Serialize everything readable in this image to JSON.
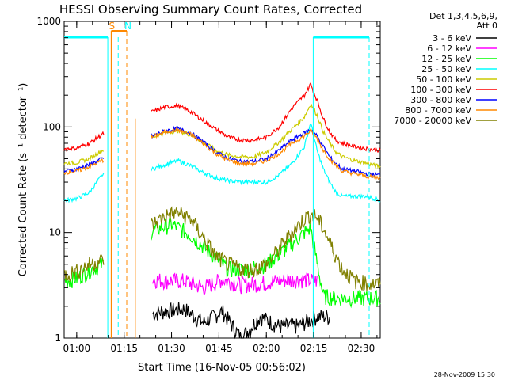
{
  "chart_data": {
    "type": "line",
    "title": "HESSI Observing Summary Count Rates, Corrected",
    "xlabel": "Start Time (16-Nov-05 00:56:02)",
    "ylabel": "Corrected Count Rate (s⁻¹ detector⁻¹)",
    "yscale": "log",
    "ylim": [
      1,
      1000
    ],
    "xlim_minutes_after_start": [
      0,
      100
    ],
    "x_ticks": [
      {
        "label": "01:00",
        "t": 3.97
      },
      {
        "label": "01:15",
        "t": 18.97
      },
      {
        "label": "01:30",
        "t": 33.97
      },
      {
        "label": "01:45",
        "t": 48.97
      },
      {
        "label": "02:00",
        "t": 63.97
      },
      {
        "label": "02:15",
        "t": 78.97
      },
      {
        "label": "02:30",
        "t": 93.97
      }
    ],
    "y_ticks": [
      {
        "label": "1",
        "v": 1
      },
      {
        "label": "10",
        "v": 10
      },
      {
        "label": "100",
        "v": 100
      },
      {
        "label": "1000",
        "v": 1000
      }
    ],
    "legend_header": [
      "Det 1,3,4,5,6,9,",
      "Att 0"
    ],
    "legend_position": "right",
    "series": [
      {
        "name": "3 - 6 keV",
        "color": "#000000",
        "t": [
          28,
          32,
          38,
          44,
          50,
          56,
          62,
          68,
          74,
          80,
          84
        ],
        "v": [
          1.7,
          1.8,
          1.9,
          1.4,
          1.8,
          1.0,
          1.6,
          1.3,
          1.3,
          1.6,
          1.6
        ]
      },
      {
        "name": "6 - 12 keV",
        "color": "#ff00ff",
        "t": [
          28,
          32,
          38,
          44,
          50,
          56,
          62,
          68,
          74,
          80
        ],
        "v": [
          3.6,
          3.5,
          3.5,
          3.0,
          3.6,
          3.2,
          3.3,
          3.5,
          3.6,
          3.5
        ]
      },
      {
        "name": "12 - 25 keV",
        "color": "#00ff00",
        "t": [
          0,
          4,
          8,
          12,
          28,
          34,
          40,
          46,
          52,
          58,
          64,
          70,
          76,
          78,
          82,
          86,
          90,
          94,
          100
        ],
        "v": [
          3.5,
          3.7,
          4.4,
          5.0,
          10.5,
          12.0,
          9.5,
          6.5,
          4.5,
          4.5,
          5.0,
          7.0,
          10.0,
          11.0,
          2.5,
          2.4,
          2.4,
          2.4,
          2.4
        ]
      },
      {
        "name": "25 - 50 keV",
        "color": "#00ffff",
        "t": [
          0,
          4,
          8,
          12,
          28,
          32,
          36,
          40,
          44,
          48,
          52,
          56,
          60,
          64,
          68,
          72,
          76,
          78,
          80,
          82,
          84,
          86,
          88,
          92,
          96,
          100
        ],
        "v": [
          20,
          21,
          24,
          35,
          40,
          44,
          48,
          43,
          37,
          33,
          31,
          30,
          30,
          30,
          35,
          45,
          65,
          110,
          60,
          40,
          30,
          24,
          22,
          22,
          22,
          20
        ]
      },
      {
        "name": "50 - 100 keV",
        "color": "#cccc00",
        "t": [
          0,
          4,
          8,
          12,
          28,
          32,
          36,
          40,
          44,
          48,
          52,
          56,
          60,
          64,
          68,
          72,
          76,
          78,
          80,
          82,
          84,
          86,
          88,
          92,
          96,
          100
        ],
        "v": [
          45,
          46,
          50,
          60,
          80,
          88,
          92,
          84,
          72,
          60,
          54,
          52,
          52,
          58,
          72,
          95,
          125,
          165,
          130,
          90,
          70,
          58,
          52,
          48,
          45,
          42
        ]
      },
      {
        "name": "100 - 300 keV",
        "color": "#ff0000",
        "t": [
          0,
          4,
          8,
          12,
          28,
          32,
          36,
          40,
          44,
          48,
          52,
          56,
          60,
          64,
          68,
          72,
          76,
          78,
          80,
          82,
          84,
          86,
          88,
          92,
          96,
          100
        ],
        "v": [
          62,
          63,
          70,
          85,
          140,
          155,
          158,
          140,
          115,
          95,
          80,
          75,
          75,
          80,
          100,
          150,
          200,
          255,
          180,
          120,
          90,
          75,
          70,
          65,
          62,
          60
        ]
      },
      {
        "name": "300 - 800 keV",
        "color": "#0000ff",
        "t": [
          0,
          4,
          8,
          12,
          28,
          32,
          36,
          40,
          44,
          48,
          52,
          56,
          60,
          64,
          68,
          72,
          76,
          78,
          80,
          82,
          84,
          86,
          88,
          92,
          96,
          100
        ],
        "v": [
          38,
          40,
          44,
          50,
          82,
          92,
          96,
          88,
          72,
          58,
          50,
          47,
          47,
          50,
          60,
          75,
          88,
          95,
          82,
          65,
          52,
          45,
          40,
          38,
          36,
          35
        ]
      },
      {
        "name": "800 - 7000 keV",
        "color": "#ff8800",
        "t": [
          0,
          4,
          8,
          12,
          28,
          32,
          36,
          40,
          44,
          48,
          52,
          56,
          60,
          64,
          68,
          72,
          76,
          78,
          80,
          82,
          84,
          86,
          88,
          92,
          96,
          100
        ],
        "v": [
          37,
          38,
          42,
          48,
          80,
          90,
          94,
          85,
          70,
          56,
          48,
          45,
          45,
          48,
          56,
          70,
          82,
          92,
          78,
          60,
          50,
          43,
          38,
          36,
          34,
          33
        ]
      },
      {
        "name": "7000 - 20000 keV",
        "color": "#808000",
        "t": [
          0,
          4,
          8,
          12,
          28,
          32,
          36,
          40,
          44,
          48,
          52,
          56,
          60,
          64,
          68,
          72,
          76,
          78,
          80,
          82,
          84,
          86,
          88,
          92,
          96,
          100
        ],
        "v": [
          4.0,
          4.3,
          5.0,
          5.5,
          12.0,
          14.5,
          15.5,
          13.5,
          9.0,
          6.0,
          5.0,
          4.5,
          4.5,
          5.0,
          7.0,
          10.0,
          13.5,
          15.0,
          14.0,
          11.0,
          8.0,
          6.0,
          4.5,
          3.5,
          3.3,
          3.2
        ]
      }
    ],
    "annotations": [
      {
        "text": "S",
        "color": "#ff8800",
        "t": 14.9
      },
      {
        "text": "N",
        "color": "#00ffff",
        "t": 19.8
      }
    ]
  },
  "footer_timestamp": "28-Nov-2009 15:30"
}
